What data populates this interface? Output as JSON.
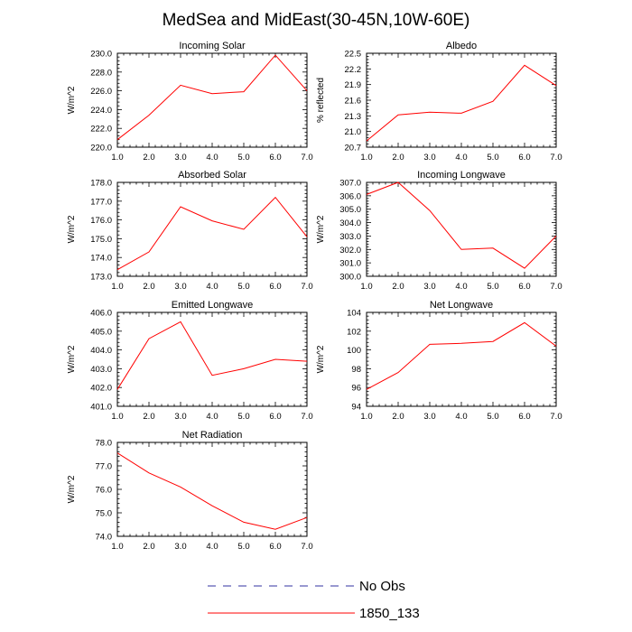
{
  "figure_title": "MedSea and MidEast(30-45N,10W-60E)",
  "legend": [
    {
      "label": "No Obs",
      "color": "#3030a0",
      "dashed": true
    },
    {
      "label": "1850_133",
      "color": "#ff0000",
      "dashed": false
    }
  ],
  "chart_data": [
    {
      "type": "line",
      "title": "Incoming Solar",
      "ylabel": "W/m^2",
      "x": [
        1,
        2,
        3,
        4,
        5,
        6,
        7
      ],
      "xticks": [
        "1.0",
        "2.0",
        "3.0",
        "4.0",
        "5.0",
        "6.0",
        "7.0"
      ],
      "ylim": [
        220,
        230
      ],
      "yticks": [
        220,
        222,
        224,
        226,
        228,
        230
      ],
      "ytick_labels": [
        "220.0",
        "222.0",
        "224.0",
        "226.0",
        "228.0",
        "230.0"
      ],
      "series": [
        {
          "name": "1850_133",
          "values": [
            220.8,
            223.4,
            226.6,
            225.7,
            225.9,
            229.8,
            226.0
          ]
        }
      ]
    },
    {
      "type": "line",
      "title": "Albedo",
      "ylabel": "% reflected",
      "x": [
        1,
        2,
        3,
        4,
        5,
        6,
        7
      ],
      "xticks": [
        "1.0",
        "2.0",
        "3.0",
        "4.0",
        "5.0",
        "6.0",
        "7.0"
      ],
      "ylim": [
        20.7,
        22.5
      ],
      "yticks": [
        20.7,
        21.0,
        21.3,
        21.6,
        21.9,
        22.2,
        22.5
      ],
      "ytick_labels": [
        "20.7",
        "21.0",
        "21.3",
        "21.6",
        "21.9",
        "22.2",
        "22.5"
      ],
      "series": [
        {
          "name": "1850_133",
          "values": [
            20.82,
            21.32,
            21.37,
            21.35,
            21.58,
            22.27,
            21.88
          ]
        }
      ]
    },
    {
      "type": "line",
      "title": "Absorbed Solar",
      "ylabel": "W/m^2",
      "x": [
        1,
        2,
        3,
        4,
        5,
        6,
        7
      ],
      "xticks": [
        "1.0",
        "2.0",
        "3.0",
        "4.0",
        "5.0",
        "6.0",
        "7.0"
      ],
      "ylim": [
        173,
        178
      ],
      "yticks": [
        173,
        174,
        175,
        176,
        177,
        178
      ],
      "ytick_labels": [
        "173.0",
        "174.0",
        "175.0",
        "176.0",
        "177.0",
        "178.0"
      ],
      "series": [
        {
          "name": "1850_133",
          "values": [
            173.35,
            174.3,
            176.7,
            175.95,
            175.5,
            177.2,
            175.1
          ]
        }
      ]
    },
    {
      "type": "line",
      "title": "Incoming Longwave",
      "ylabel": "W/m^2",
      "x": [
        1,
        2,
        3,
        4,
        5,
        6,
        7
      ],
      "xticks": [
        "1.0",
        "2.0",
        "3.0",
        "4.0",
        "5.0",
        "6.0",
        "7.0"
      ],
      "ylim": [
        300,
        307
      ],
      "yticks": [
        300,
        301,
        302,
        303,
        304,
        305,
        306,
        307
      ],
      "ytick_labels": [
        "300.0",
        "301.0",
        "302.0",
        "303.0",
        "304.0",
        "305.0",
        "306.0",
        "307.0"
      ],
      "series": [
        {
          "name": "1850_133",
          "values": [
            306.1,
            307.0,
            304.9,
            302.0,
            302.1,
            300.6,
            303.0
          ]
        }
      ]
    },
    {
      "type": "line",
      "title": "Emitted Longwave",
      "ylabel": "W/m^2",
      "x": [
        1,
        2,
        3,
        4,
        5,
        6,
        7
      ],
      "xticks": [
        "1.0",
        "2.0",
        "3.0",
        "4.0",
        "5.0",
        "6.0",
        "7.0"
      ],
      "ylim": [
        401,
        406
      ],
      "yticks": [
        401,
        402,
        403,
        404,
        405,
        406
      ],
      "ytick_labels": [
        "401.0",
        "402.0",
        "403.0",
        "404.0",
        "405.0",
        "406.0"
      ],
      "series": [
        {
          "name": "1850_133",
          "values": [
            401.9,
            404.6,
            405.5,
            402.65,
            403.0,
            403.5,
            403.4
          ]
        }
      ]
    },
    {
      "type": "line",
      "title": "Net Longwave",
      "ylabel": "W/m^2",
      "x": [
        1,
        2,
        3,
        4,
        5,
        6,
        7
      ],
      "xticks": [
        "1.0",
        "2.0",
        "3.0",
        "4.0",
        "5.0",
        "6.0",
        "7.0"
      ],
      "ylim": [
        94,
        104
      ],
      "yticks": [
        94,
        96,
        98,
        100,
        102,
        104
      ],
      "ytick_labels": [
        "94",
        "96",
        "98",
        "100",
        "102",
        "104"
      ],
      "series": [
        {
          "name": "1850_133",
          "values": [
            95.8,
            97.6,
            100.6,
            100.7,
            100.9,
            102.9,
            100.4
          ]
        }
      ]
    },
    {
      "type": "line",
      "title": "Net Radiation",
      "ylabel": "W/m^2",
      "x": [
        1,
        2,
        3,
        4,
        5,
        6,
        7
      ],
      "xticks": [
        "1.0",
        "2.0",
        "3.0",
        "4.0",
        "5.0",
        "6.0",
        "7.0"
      ],
      "ylim": [
        74,
        78
      ],
      "yticks": [
        74,
        75,
        76,
        77,
        78
      ],
      "ytick_labels": [
        "74.0",
        "75.0",
        "76.0",
        "77.0",
        "78.0"
      ],
      "series": [
        {
          "name": "1850_133",
          "values": [
            77.55,
            76.7,
            76.1,
            75.3,
            74.6,
            74.3,
            74.8
          ]
        }
      ]
    }
  ]
}
